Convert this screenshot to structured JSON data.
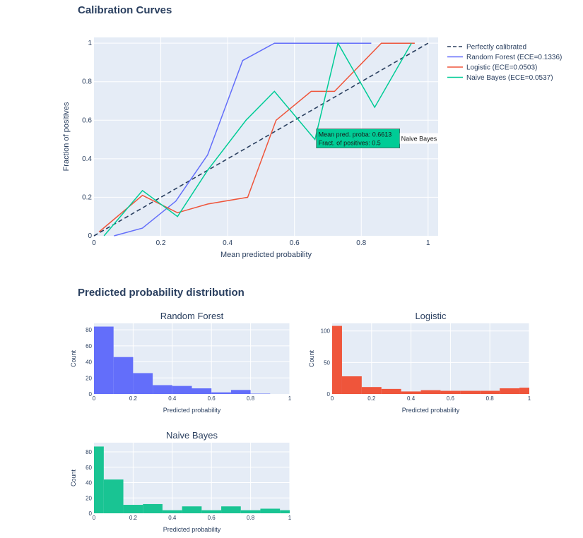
{
  "page": {
    "calibration_title": "Calibration Curves",
    "distribution_title": "Predicted probability distribution"
  },
  "colors": {
    "plot_bg": "#e5ecf6",
    "grid": "#ffffff",
    "random_forest": "#636efa",
    "logistic": "#ef553b",
    "naive_bayes": "#00cc96",
    "diagonal": "#2a3f5f"
  },
  "tooltip": {
    "line1": "Mean pred. proba: 0.6613",
    "line2": "Fract. of positives: 0.5",
    "name": "Naive Bayes"
  },
  "chart_data": [
    {
      "type": "line",
      "id": "calibration",
      "xlabel": "Mean predicted probability",
      "ylabel": "Fraction of positives",
      "xlim": [
        0,
        1.03
      ],
      "ylim": [
        0,
        1.03
      ],
      "xticks": [
        0,
        0.2,
        0.4,
        0.6,
        0.8,
        1
      ],
      "xtick_labels": [
        "0",
        "0.2",
        "0.4",
        "0.6",
        "0.8",
        "1"
      ],
      "yticks": [
        0,
        0.2,
        0.4,
        0.6,
        0.8,
        1
      ],
      "ytick_labels": [
        "0",
        "0.2",
        "0.4",
        "0.6",
        "0.8",
        "1"
      ],
      "legend_position": "right",
      "series": [
        {
          "name": "Perfectly calibrated",
          "color": "#2a3f5f",
          "dash": true,
          "x": [
            0,
            1
          ],
          "y": [
            0,
            1
          ]
        },
        {
          "name": "Random Forest (ECE=0.1336)",
          "color": "#636efa",
          "x": [
            0.06,
            0.145,
            0.245,
            0.34,
            0.445,
            0.54,
            0.65,
            0.76,
            0.83
          ],
          "y": [
            0.0,
            0.04,
            0.18,
            0.42,
            0.91,
            1.0,
            1.0,
            1.0,
            1.0
          ]
        },
        {
          "name": "Logistic (ECE=0.0503)",
          "color": "#ef553b",
          "x": [
            0.015,
            0.145,
            0.25,
            0.34,
            0.46,
            0.545,
            0.65,
            0.72,
            0.86,
            0.96
          ],
          "y": [
            0.02,
            0.21,
            0.12,
            0.165,
            0.2,
            0.6,
            0.75,
            0.75,
            1.0,
            1.0
          ]
        },
        {
          "name": "Naive Bayes (ECE=0.0537)",
          "color": "#00cc96",
          "x": [
            0.03,
            0.145,
            0.25,
            0.34,
            0.455,
            0.54,
            0.6613,
            0.73,
            0.84,
            0.95
          ],
          "y": [
            0.0,
            0.235,
            0.1,
            0.34,
            0.6,
            0.75,
            0.5,
            1.0,
            0.667,
            1.0
          ]
        }
      ]
    },
    {
      "type": "bar",
      "id": "hist-rf",
      "title": "Random Forest",
      "xlabel": "Predicted probability",
      "ylabel": "Count",
      "color": "#636efa",
      "bin_edges": [
        0,
        0.1,
        0.2,
        0.3,
        0.4,
        0.5,
        0.6,
        0.7,
        0.8,
        0.9
      ],
      "values": [
        84,
        46,
        26,
        11,
        10,
        7,
        2,
        5,
        0.4
      ],
      "xlim": [
        0,
        1
      ],
      "ylim": [
        0,
        88
      ],
      "xticks": [
        0,
        0.2,
        0.4,
        0.6,
        0.8,
        1
      ],
      "xtick_labels": [
        "0",
        "0.2",
        "0.4",
        "0.6",
        "0.8",
        "1"
      ],
      "yticks": [
        0,
        20,
        40,
        60,
        80
      ],
      "ytick_labels": [
        "0",
        "20",
        "40",
        "60",
        "80"
      ]
    },
    {
      "type": "bar",
      "id": "hist-lr",
      "title": "Logistic",
      "xlabel": "Predicted probability",
      "ylabel": "Count",
      "color": "#ef553b",
      "bin_edges": [
        0,
        0.05,
        0.15,
        0.25,
        0.35,
        0.45,
        0.55,
        0.65,
        0.75,
        0.85,
        0.95,
        1.05
      ],
      "values": [
        108,
        28,
        11,
        8,
        4,
        6,
        5,
        5,
        5,
        9,
        10
      ],
      "xlim": [
        0,
        1
      ],
      "ylim": [
        0,
        112
      ],
      "xticks": [
        0,
        0.2,
        0.4,
        0.6,
        0.8,
        1
      ],
      "xtick_labels": [
        "0",
        "0.2",
        "0.4",
        "0.6",
        "0.8",
        "1"
      ],
      "yticks": [
        0,
        50,
        100
      ],
      "ytick_labels": [
        "0",
        "50",
        "100"
      ]
    },
    {
      "type": "bar",
      "id": "hist-nb",
      "title": "Naive Bayes",
      "xlabel": "Predicted probability",
      "ylabel": "Count",
      "color": "#19c493",
      "bin_edges": [
        0,
        0.05,
        0.15,
        0.25,
        0.35,
        0.45,
        0.55,
        0.65,
        0.75,
        0.85,
        0.95,
        1.05
      ],
      "values": [
        87,
        44,
        11,
        12,
        4,
        9,
        4,
        9,
        4,
        6,
        4
      ],
      "xlim": [
        0,
        1
      ],
      "ylim": [
        0,
        92
      ],
      "xticks": [
        0,
        0.2,
        0.4,
        0.6,
        0.8,
        1
      ],
      "xtick_labels": [
        "0",
        "0.2",
        "0.4",
        "0.6",
        "0.8",
        "1"
      ],
      "yticks": [
        0,
        20,
        40,
        60,
        80
      ],
      "ytick_labels": [
        "0",
        "20",
        "40",
        "60",
        "80"
      ]
    }
  ]
}
